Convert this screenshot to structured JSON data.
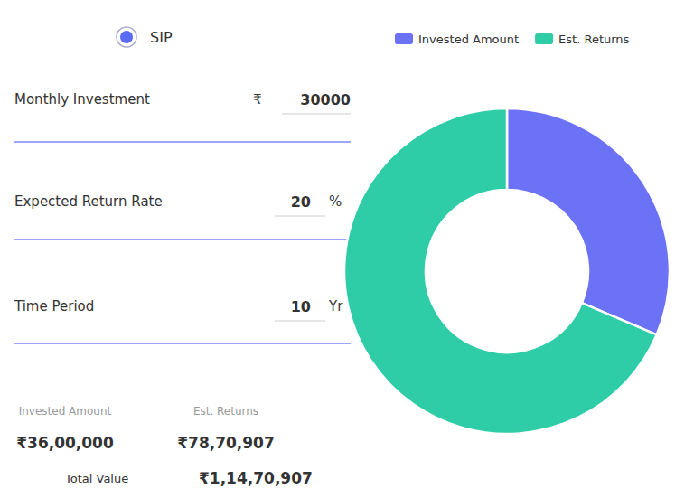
{
  "chart_data": {
    "type": "donut",
    "categories": [
      "Invested Amount",
      "Est. Returns"
    ],
    "values": [
      3600000,
      7870907
    ],
    "colors": [
      "#6C72F5",
      "#2ECDA7"
    ],
    "legend": "top",
    "annotations": [
      [
        "SIP"
      ],
      [
        "Monthly Investment",
        "₹",
        "30000"
      ],
      [
        "Expected Return Rate",
        "20",
        "%"
      ],
      [
        "Time Period",
        "10",
        "Yr"
      ],
      [
        "Invested Amount",
        "₹36,00,000"
      ],
      [
        "Est. Returns",
        "₹78,70,907"
      ],
      [
        "Total Value",
        "₹1,14,70,907"
      ]
    ]
  }
}
